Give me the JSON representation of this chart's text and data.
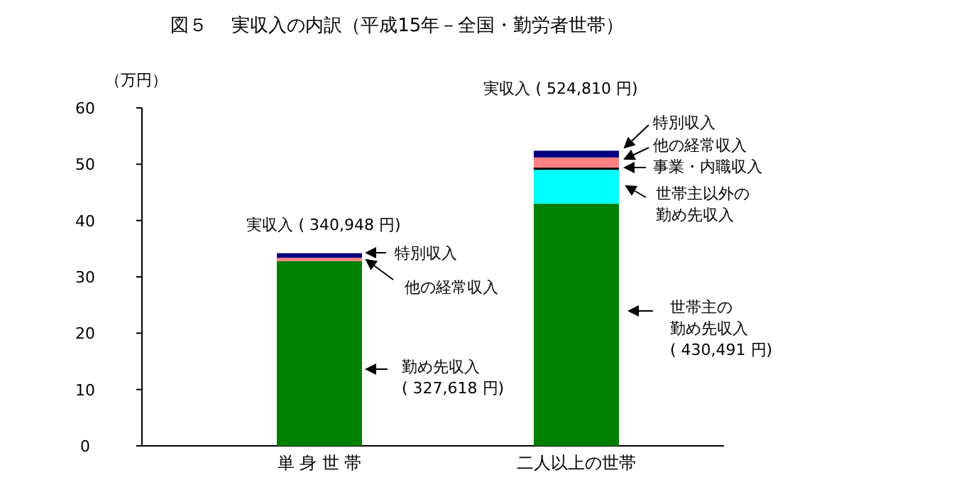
{
  "chart_data": {
    "type": "bar",
    "stacked": true,
    "title": "図５　 実収入の内訳（平成15年－全国・勤労者世帯）",
    "ylabel": "（万円）",
    "categories": [
      "単 身 世 帯",
      "二人以上の世帯"
    ],
    "series": [
      {
        "color": "#008000",
        "values": [
          32.8,
          43.0
        ]
      },
      {
        "color": "#00ffff",
        "values": [
          null,
          6.0
        ]
      },
      {
        "color": "#000000",
        "values": [
          null,
          0.4
        ]
      },
      {
        "color": "#ff8080",
        "values": [
          0.6,
          1.8
        ]
      },
      {
        "color": "#000080",
        "values": [
          0.8,
          1.2
        ]
      }
    ],
    "ylim": [
      0,
      60
    ],
    "yticks": [
      0,
      10,
      20,
      30,
      40,
      50,
      60
    ],
    "annotations": [
      "特別収入",
      "他の経常収入",
      "勤め先収入\n( 327,618 円)",
      "特別収入",
      "他の経常収入",
      "事業・内職収入",
      "世帯主以外の勤め先収入",
      "世帯主の勤め先収入\n( 430,491 円)",
      "実収入 ( 340,948 円)",
      "実収入 ( 524,810 円)"
    ]
  }
}
